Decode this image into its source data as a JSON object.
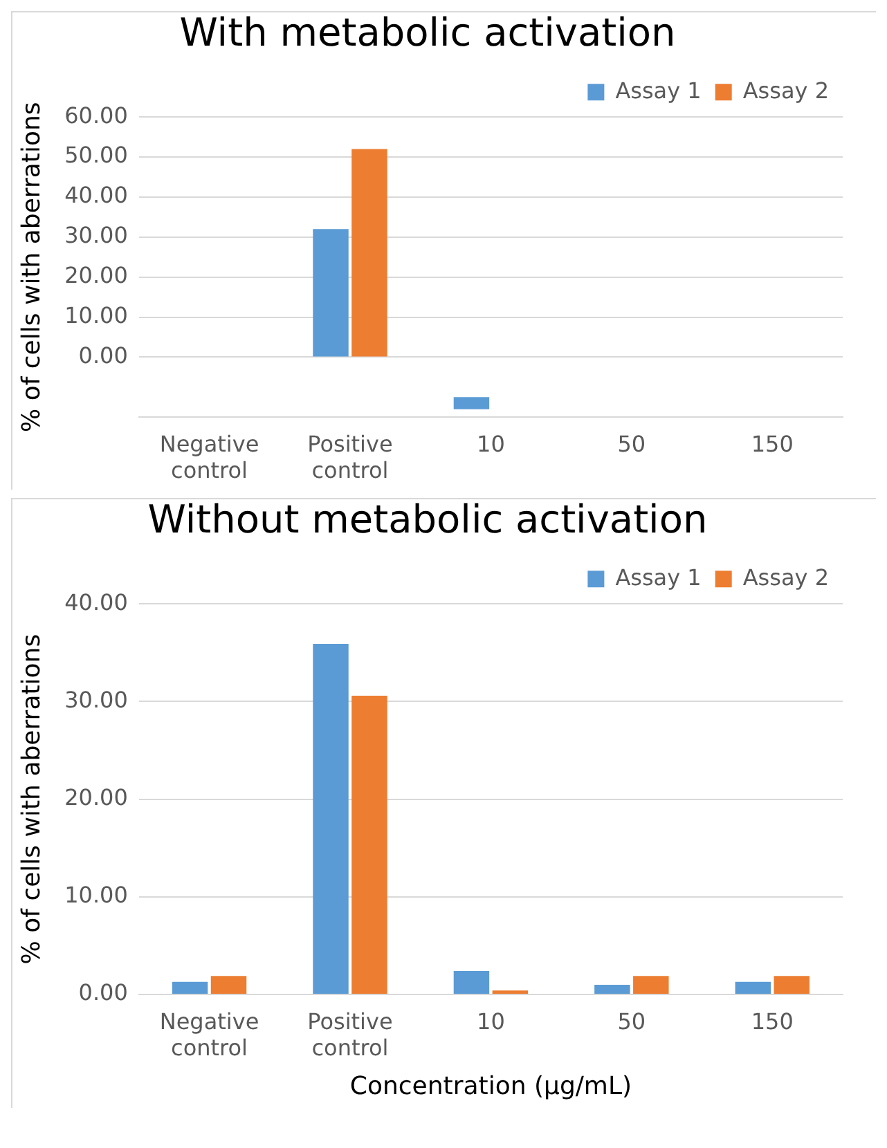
{
  "chart_data": [
    {
      "type": "bar",
      "title": "With metabolic activation",
      "ylabel": "% of cells with aberrations",
      "categories": [
        "Negative control",
        "Positive control",
        "10",
        "50",
        "150"
      ],
      "series": [
        {
          "name": "Assay 1",
          "color": "#5b9bd5",
          "values": [
            null,
            32,
            3,
            null,
            null
          ],
          "base": [
            null,
            null,
            -13,
            null,
            null
          ]
        },
        {
          "name": "Assay 2",
          "color": "#ed7d31",
          "values": [
            null,
            52,
            null,
            null,
            null
          ]
        }
      ],
      "ylim": [
        -15,
        60
      ],
      "yticks": [
        {
          "value": 0,
          "label": "0.00"
        },
        {
          "value": 10,
          "label": "10.00"
        },
        {
          "value": 20,
          "label": "20.00"
        },
        {
          "value": 30,
          "label": "30.00"
        },
        {
          "value": 40,
          "label": "40.00"
        },
        {
          "value": 50,
          "label": "50.00"
        },
        {
          "value": 60,
          "label": "60.00"
        }
      ],
      "grid": "y",
      "legend": "top right"
    },
    {
      "type": "bar",
      "title": "Without metabolic activation",
      "ylabel": "% of cells with aberrations",
      "xlabel": "Concentration (µg/mL)",
      "categories": [
        "Negative control",
        "Positive control",
        "10",
        "50",
        "150"
      ],
      "series": [
        {
          "name": "Assay 1",
          "color": "#5b9bd5",
          "values": [
            1.3,
            35.9,
            2.4,
            1.0,
            1.3
          ]
        },
        {
          "name": "Assay 2",
          "color": "#ed7d31",
          "values": [
            1.9,
            30.6,
            0.4,
            1.9,
            1.9
          ]
        }
      ],
      "ylim": [
        0,
        40
      ],
      "yticks": [
        {
          "value": 0,
          "label": "0.00"
        },
        {
          "value": 10,
          "label": "10.00"
        },
        {
          "value": 20,
          "label": "20.00"
        },
        {
          "value": 30,
          "label": "30.00"
        },
        {
          "value": 40,
          "label": "40.00"
        }
      ],
      "grid": "y",
      "legend": "top right"
    }
  ]
}
